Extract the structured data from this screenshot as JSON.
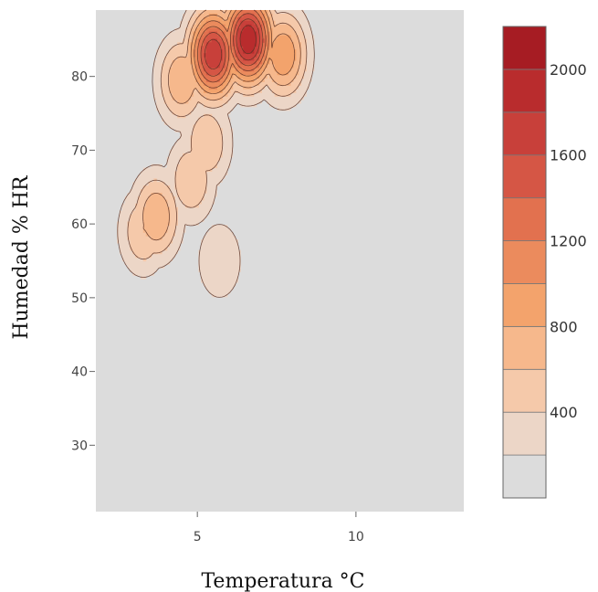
{
  "chart_data": {
    "type": "contour",
    "title": "",
    "xlabel": "Temperatura  °C",
    "ylabel": "Humedad  % HR",
    "xlim": [
      1.8,
      13.4
    ],
    "ylim": [
      21,
      89
    ],
    "xticks": [
      5,
      10
    ],
    "yticks": [
      30,
      40,
      50,
      60,
      70,
      80
    ],
    "grid": false,
    "background": "#dcdcdc",
    "colorbar": {
      "min": 0,
      "max": 2200,
      "step": 200,
      "tick_values": [
        400,
        800,
        1200,
        1600,
        2000
      ],
      "colors": [
        "#dcdcdc",
        "#ecd6c7",
        "#f5c9aa",
        "#f6b88c",
        "#f3a36c",
        "#eb8b5d",
        "#e2714f",
        "#d55645",
        "#c8403a",
        "#b92c2d",
        "#a61c23"
      ],
      "placement": "right"
    },
    "density_peaks": [
      {
        "x": 6.6,
        "y": 85.0,
        "level": 2000
      },
      {
        "x": 5.5,
        "y": 83.0,
        "level": 1800
      },
      {
        "x": 7.7,
        "y": 83.0,
        "level": 1000
      },
      {
        "x": 4.5,
        "y": 79.5,
        "level": 800
      },
      {
        "x": 3.7,
        "y": 61.0,
        "level": 800
      },
      {
        "x": 3.3,
        "y": 59.0,
        "level": 600
      },
      {
        "x": 5.3,
        "y": 71.0,
        "level": 600
      },
      {
        "x": 4.8,
        "y": 66.0,
        "level": 600
      },
      {
        "x": 5.7,
        "y": 55.0,
        "level": 400
      }
    ]
  }
}
